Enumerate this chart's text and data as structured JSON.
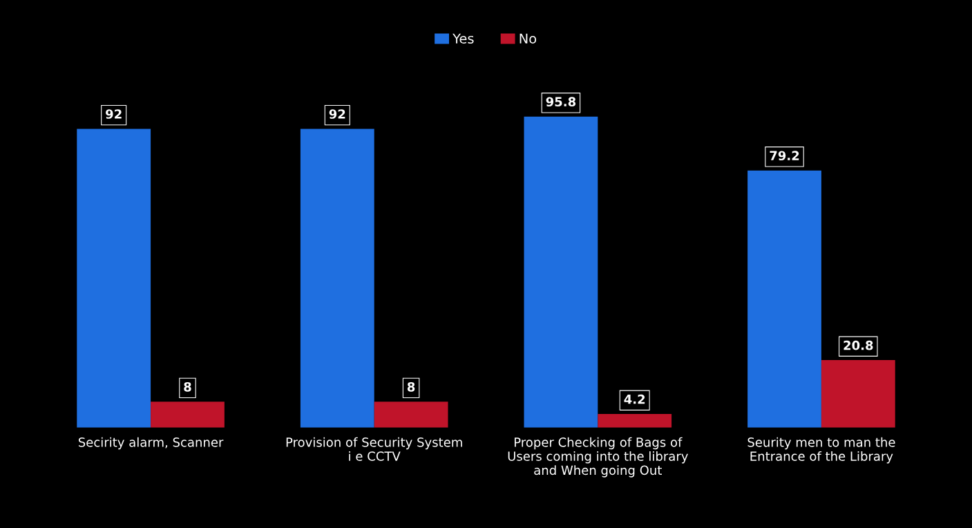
{
  "chart_data": {
    "type": "bar",
    "categories": [
      "Secirity alarm, Scanner",
      "Provision of Security System\ni e CCTV",
      "Proper Checking of Bags of\nUsers coming into the library\nand When going Out",
      "Seurity men to man the\nEntrance of the Library"
    ],
    "series": [
      {
        "name": "Yes",
        "color": "#1f6fe0",
        "values": [
          92,
          92,
          95.8,
          79.2
        ]
      },
      {
        "name": "No",
        "color": "#c0142a",
        "values": [
          8,
          8,
          4.2,
          20.8
        ]
      }
    ],
    "data_labels": true,
    "legend": "top",
    "grid": false
  }
}
